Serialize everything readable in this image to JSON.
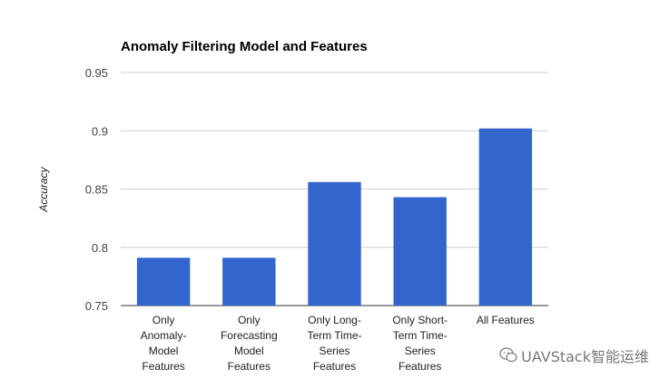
{
  "chart_data": {
    "type": "bar",
    "title": "Anomaly Filtering Model and Features",
    "xlabel": "",
    "ylabel": "Accuracy",
    "ylim": [
      0.75,
      0.95
    ],
    "yticks": [
      "0.95",
      "0.9",
      "0.85",
      "0.8",
      "0.75"
    ],
    "grid": true,
    "bar_color": "#3366cc",
    "categories": [
      [
        "Only",
        "Anomaly-",
        "Model",
        "Features"
      ],
      [
        "Only",
        "Forecasting",
        "Model",
        "Features"
      ],
      [
        "Only Long-",
        "Term Time-",
        "Series",
        "Features"
      ],
      [
        "Only Short-",
        "Term Time-",
        "Series",
        "Features"
      ],
      [
        "All Features"
      ]
    ],
    "values": [
      0.791,
      0.791,
      0.856,
      0.843,
      0.902
    ]
  },
  "watermark": {
    "text": "UAVStack智能运维",
    "icon": "wechat-icon"
  }
}
